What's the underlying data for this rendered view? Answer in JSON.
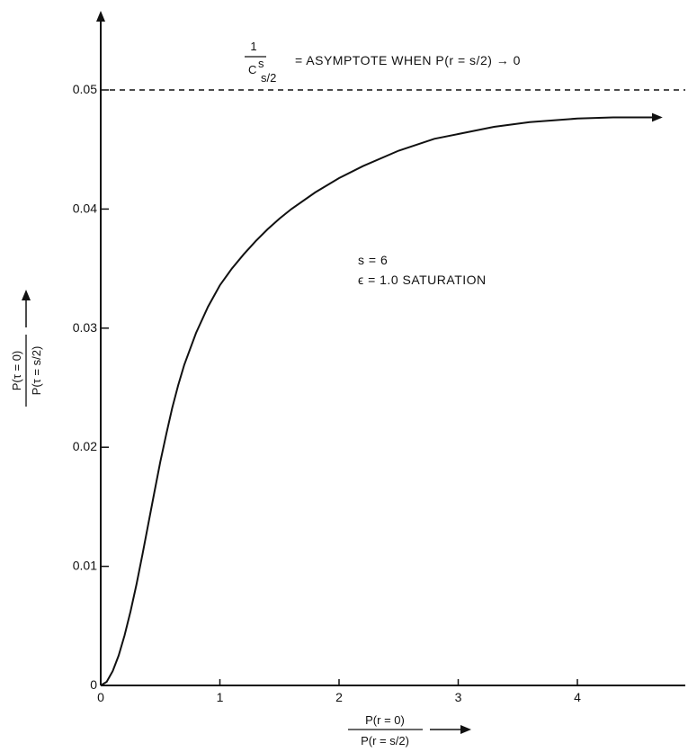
{
  "chart_data": {
    "type": "line",
    "title": "",
    "xlim": [
      0,
      5
    ],
    "ylim": [
      0,
      0.05
    ],
    "x_ticks": [
      "0",
      "1",
      "2",
      "3",
      "4"
    ],
    "y_ticks": [
      "0",
      "0.01",
      "0.02",
      "0.03",
      "0.04",
      "0.05"
    ],
    "x_tick_values": [
      0,
      1,
      2,
      3,
      4
    ],
    "y_tick_values": [
      0,
      0.01,
      0.02,
      0.03,
      0.04,
      0.05
    ],
    "xlabel": {
      "numerator": "P(r = 0)",
      "denominator": "P(r = s/2)"
    },
    "ylabel": {
      "numerator": "P(τ = 0)",
      "denominator": "P(τ = s/2)"
    },
    "asymptote": {
      "y": 0.05,
      "label_numerator": "1",
      "label_symbol": "C",
      "label_superscript": "s",
      "label_subscript": "s/2",
      "label_text": "= ASYMPTOTE WHEN P(r = s/2) → 0"
    },
    "annotations": [
      "s = 6",
      "ϵ = 1.0  SATURATION"
    ],
    "grid": false,
    "series": [
      {
        "x": [
          0,
          0.05,
          0.1,
          0.15,
          0.2,
          0.25,
          0.3,
          0.35,
          0.4,
          0.45,
          0.5,
          0.55,
          0.6,
          0.65,
          0.7,
          0.8,
          0.9,
          1.0,
          1.1,
          1.2,
          1.3,
          1.4,
          1.5,
          1.6,
          1.8,
          2.0,
          2.2,
          2.5,
          2.8,
          3.0,
          3.3,
          3.6,
          4.0,
          4.3,
          4.6,
          4.7
        ],
        "y": [
          0,
          0.0003,
          0.0012,
          0.0025,
          0.0042,
          0.0062,
          0.0085,
          0.011,
          0.0136,
          0.0162,
          0.0188,
          0.0211,
          0.0233,
          0.0252,
          0.0269,
          0.0296,
          0.0318,
          0.0336,
          0.035,
          0.0362,
          0.0373,
          0.0383,
          0.0392,
          0.04,
          0.0414,
          0.0426,
          0.0436,
          0.0449,
          0.0459,
          0.0463,
          0.0469,
          0.0473,
          0.0476,
          0.0477,
          0.0477,
          0.0477
        ]
      }
    ]
  }
}
